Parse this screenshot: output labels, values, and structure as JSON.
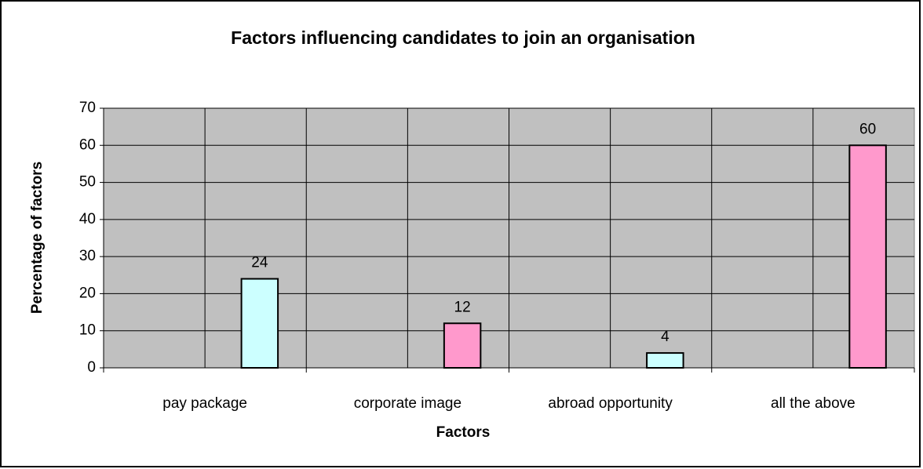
{
  "chart_data": {
    "type": "bar",
    "title": "Factors influencing candidates to join an organisation",
    "x_label": "Factors",
    "y_label": "Percentage of factors",
    "categories": [
      "pay package",
      "corporate image",
      "abroad opportunity",
      "all the above"
    ],
    "values": [
      24,
      12,
      4,
      60
    ],
    "colors": [
      "#ccffff",
      "#ff99cc",
      "#ccffff",
      "#ff99cc"
    ],
    "ylim": [
      0,
      70
    ],
    "yticks": [
      0,
      10,
      20,
      30,
      40,
      50,
      60,
      70
    ],
    "grid": true
  }
}
